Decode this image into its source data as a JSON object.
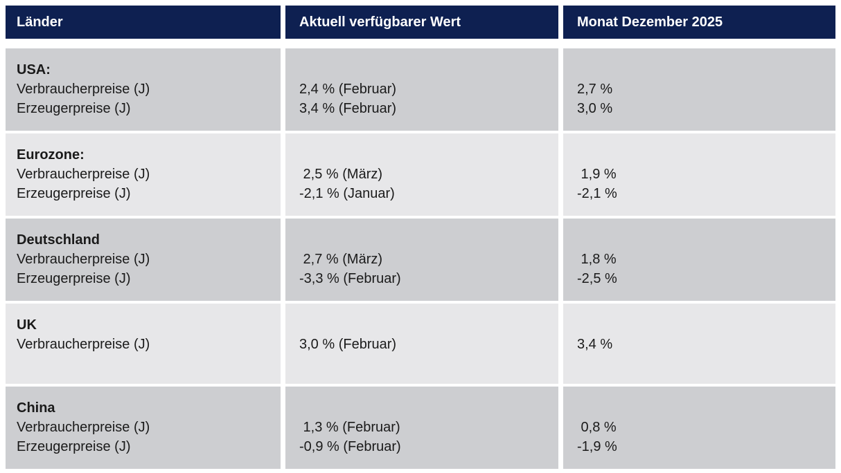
{
  "table": {
    "header": {
      "country_col": "Länder",
      "current_col": "Aktuell verfügbarer Wert",
      "month_col": "Monat Dezember 2025"
    },
    "rows": [
      {
        "country": "USA:",
        "metrics": "Verbraucherpreise (J)\nErzeugerpreise (J)",
        "current": "2,4 % (Februar)\n3,4 % (Februar)",
        "month": "2,7 %\n3,0 %"
      },
      {
        "country": "Eurozone:",
        "metrics": "Verbraucherpreise (J)\nErzeugerpreise (J)",
        "current": " 2,5 % (März)\n-2,1 % (Januar)",
        "month": " 1,9 %\n-2,1 %"
      },
      {
        "country": "Deutschland",
        "metrics": "Verbraucherpreise (J)\nErzeugerpreise (J)",
        "current": " 2,7 % (März)\n-3,3 % (Februar)",
        "month": " 1,8 %\n-2,5 %"
      },
      {
        "country": "UK",
        "metrics": "Verbraucherpreise (J)",
        "current": "3,0 % (Februar)",
        "month": "3,4 %"
      },
      {
        "country": "China",
        "metrics": "Verbraucherpreise (J)\nErzeugerpreise (J)",
        "current": " 1,3 % (Februar)\n-0,9 % (Februar)",
        "month": " 0,8 %\n-1,9 %"
      }
    ],
    "colors": {
      "header_bg": "#0E2051",
      "header_text": "#FFFFFF",
      "row_dark": "#CDCED1",
      "row_light": "#E7E7E9",
      "body_text": "#1A1A1A"
    }
  }
}
